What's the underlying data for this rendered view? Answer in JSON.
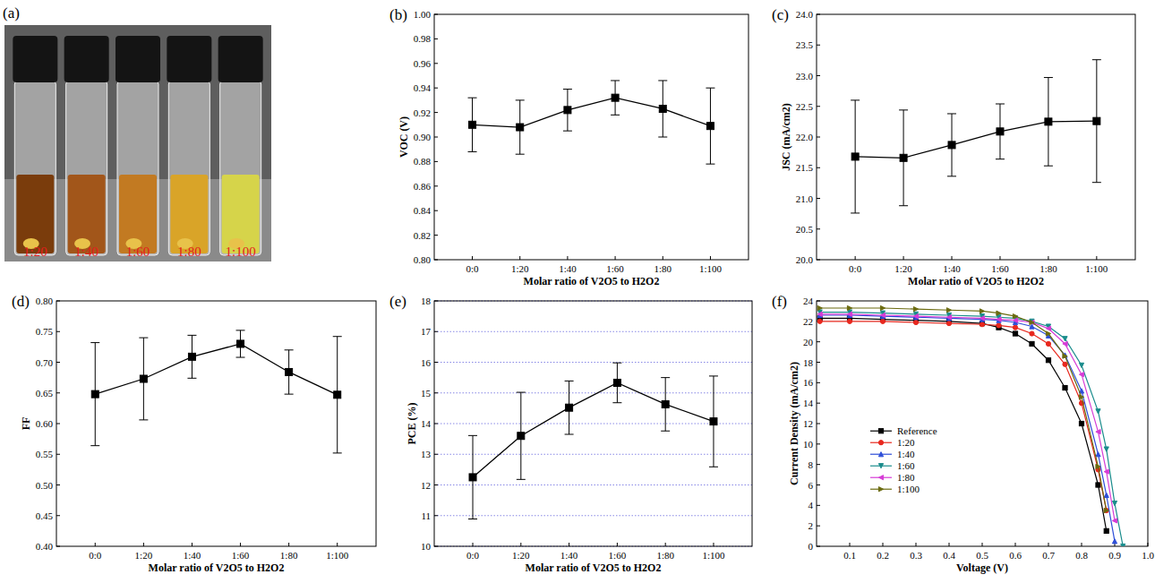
{
  "image": {
    "title": "(a)",
    "labels": [
      "1:20",
      "1:40",
      "1:60",
      "1:80",
      "1:100"
    ],
    "colors": [
      "#7a3c0c",
      "#a2561a",
      "#c27a22",
      "#d9a428",
      "#d6d44a"
    ]
  },
  "chart_data": [
    {
      "type": "line",
      "title": "(b)",
      "xlabel": "Molar ratio of V2O5 to H2O2",
      "ylabel": "VOC (V)",
      "categories": [
        "0:0",
        "1:20",
        "1:40",
        "1:60",
        "1:80",
        "1:100"
      ],
      "values": [
        0.91,
        0.908,
        0.922,
        0.932,
        0.923,
        0.909
      ],
      "errors": [
        0.022,
        0.022,
        0.017,
        0.014,
        0.023,
        0.031
      ],
      "color": "#000000",
      "marker": "square",
      "ylim": [
        0.8,
        1.0
      ],
      "yticks": [
        {
          "value": 0.8,
          "label": "0.80"
        },
        {
          "value": 0.82,
          "label": "0.82"
        },
        {
          "value": 0.84,
          "label": "0.84"
        },
        {
          "value": 0.86,
          "label": "0.86"
        },
        {
          "value": 0.88,
          "label": "0.88"
        },
        {
          "value": 0.9,
          "label": "0.90"
        },
        {
          "value": 0.92,
          "label": "0.92"
        },
        {
          "value": 0.94,
          "label": "0.94"
        },
        {
          "value": 0.96,
          "label": "0.96"
        },
        {
          "value": 0.98,
          "label": "0.98"
        },
        {
          "value": 1.0,
          "label": "1.00"
        }
      ],
      "grid": false
    },
    {
      "type": "line",
      "title": "(c)",
      "xlabel": "Molar ratio of V2O5 to H2O2",
      "ylabel": "JSC (mA/cm2)",
      "categories": [
        "0:0",
        "1:20",
        "1:40",
        "1:60",
        "1:80",
        "1:100"
      ],
      "values": [
        21.68,
        21.66,
        21.87,
        22.09,
        22.25,
        22.26
      ],
      "errors": [
        0.92,
        0.78,
        0.51,
        0.45,
        0.72,
        1.0
      ],
      "color": "#000000",
      "marker": "square",
      "ylim": [
        20.0,
        24.0
      ],
      "yticks": [
        {
          "value": 20.0,
          "label": "20.0"
        },
        20.5,
        {
          "value": 21.0,
          "label": "21.0"
        },
        21.5,
        {
          "value": 22.0,
          "label": "22.0"
        },
        22.5,
        {
          "value": 23.0,
          "label": "23.0"
        },
        23.5,
        {
          "value": 24.0,
          "label": "24.0"
        }
      ],
      "grid": false
    },
    {
      "type": "line",
      "title": "(d)",
      "xlabel": "Molar ratio of V2O5 to H2O2",
      "ylabel": "FF",
      "categories": [
        "0:0",
        "1:20",
        "1:40",
        "1:60",
        "1:80",
        "1:100"
      ],
      "values": [
        0.648,
        0.673,
        0.709,
        0.73,
        0.684,
        0.647
      ],
      "errors": [
        0.084,
        0.067,
        0.035,
        0.022,
        0.036,
        0.095
      ],
      "color": "#000000",
      "marker": "square",
      "ylim": [
        0.4,
        0.8
      ],
      "yticks": [
        {
          "value": 0.4,
          "label": "0.40"
        },
        0.45,
        {
          "value": 0.5,
          "label": "0.50"
        },
        0.55,
        {
          "value": 0.6,
          "label": "0.60"
        },
        0.65,
        {
          "value": 0.7,
          "label": "0.70"
        },
        0.75,
        {
          "value": 0.8,
          "label": "0.80"
        }
      ],
      "grid": false
    },
    {
      "type": "line",
      "title": "(e)",
      "xlabel": "Molar ratio of V2O5 to H2O2",
      "ylabel": "PCE (%)",
      "categories": [
        "0:0",
        "1:20",
        "1:40",
        "1:60",
        "1:80",
        "1:100"
      ],
      "values": [
        12.25,
        13.6,
        14.52,
        15.33,
        14.63,
        14.07
      ],
      "errors": [
        1.36,
        1.42,
        0.87,
        0.65,
        0.87,
        1.48
      ],
      "color": "#000000",
      "marker": "square",
      "ylim": [
        10,
        18
      ],
      "yticks": [
        10,
        11,
        12,
        13,
        14,
        15,
        16,
        17,
        18
      ],
      "grid": true
    },
    {
      "type": "line",
      "title": "(f)",
      "xlabel": "Voltage (V)",
      "ylabel": "Current Density (mA/cm2)",
      "x": [
        0.01,
        0.1,
        0.2,
        0.3,
        0.4,
        0.5,
        0.55,
        0.6,
        0.65,
        0.7,
        0.75,
        0.8,
        0.85,
        0.875,
        0.9,
        0.925
      ],
      "xlim": [
        0,
        1.0
      ],
      "xticks": [
        0.1,
        0.2,
        0.3,
        0.4,
        0.5,
        0.6,
        0.7,
        0.8,
        0.9,
        {
          "value": 1.0,
          "label": "1.0"
        }
      ],
      "ylim": [
        0,
        24
      ],
      "yticks": [
        0,
        2,
        4,
        6,
        8,
        10,
        12,
        14,
        16,
        18,
        20,
        22,
        24
      ],
      "legend": "center left",
      "grid": false,
      "series": [
        {
          "name": "Reference",
          "color": "#000000",
          "marker": "square",
          "values": [
            22.3,
            22.3,
            22.2,
            22.1,
            22.0,
            21.8,
            21.4,
            20.8,
            19.8,
            18.2,
            15.5,
            12.0,
            6.0,
            1.5,
            null,
            null
          ]
        },
        {
          "name": "1:20",
          "color": "#e8281e",
          "marker": "circle",
          "values": [
            22.0,
            22.0,
            22.0,
            21.9,
            21.8,
            21.7,
            21.6,
            21.4,
            20.8,
            19.8,
            17.8,
            14.0,
            7.5,
            3.5,
            null,
            null
          ]
        },
        {
          "name": "1:40",
          "color": "#2e4fd8",
          "marker": "triangle-up",
          "values": [
            22.6,
            22.6,
            22.5,
            22.4,
            22.3,
            22.2,
            22.1,
            21.9,
            21.5,
            20.6,
            18.7,
            15.2,
            9.0,
            5.0,
            0.5,
            null
          ]
        },
        {
          "name": "1:60",
          "color": "#1a8c8c",
          "marker": "triangle-down",
          "values": [
            22.9,
            22.9,
            22.8,
            22.7,
            22.6,
            22.5,
            22.4,
            22.3,
            22.0,
            21.5,
            20.3,
            17.7,
            13.2,
            9.5,
            4.2,
            0.0
          ]
        },
        {
          "name": "1:80",
          "color": "#d63cd6",
          "marker": "triangle-left",
          "values": [
            22.7,
            22.7,
            22.6,
            22.5,
            22.4,
            22.3,
            22.2,
            22.1,
            21.9,
            21.3,
            19.8,
            16.8,
            11.2,
            7.3,
            2.5,
            null
          ]
        },
        {
          "name": "1:100",
          "color": "#6b6b10",
          "marker": "triangle-right",
          "values": [
            23.3,
            23.3,
            23.3,
            23.2,
            23.1,
            23.0,
            22.8,
            22.5,
            21.9,
            20.8,
            18.6,
            14.6,
            7.8,
            3.5,
            null,
            null
          ]
        }
      ]
    }
  ]
}
